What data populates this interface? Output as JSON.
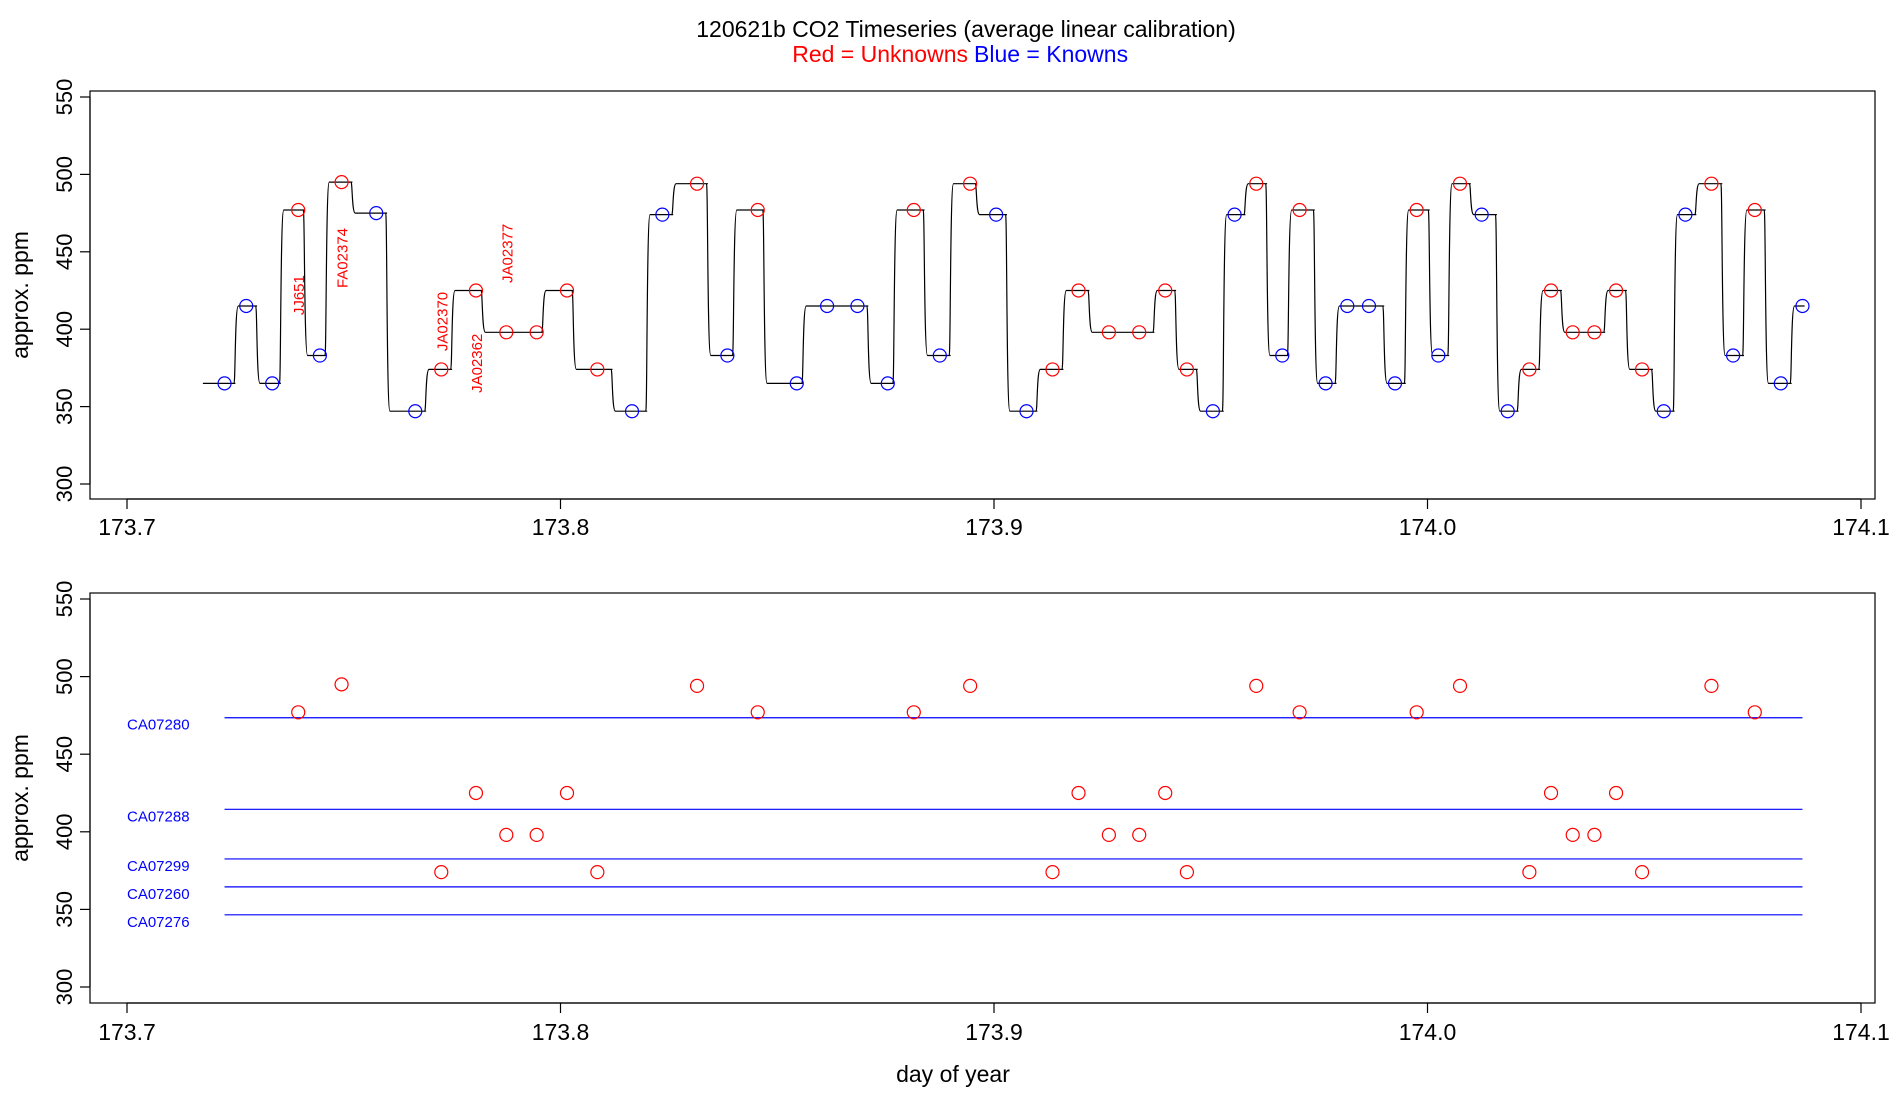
{
  "title": "120621b   CO2 Timeseries (average linear calibration)",
  "legend": {
    "red_label": "Red = Unknowns",
    "blue_label": "Blue = Knowns",
    "red_color": "#ff0000",
    "blue_color": "#0000ff"
  },
  "chart_data": [
    {
      "type": "line",
      "panel": "timeseries",
      "xlabel": "",
      "ylabel": "approx. ppm",
      "xlim": [
        173.7,
        174.1
      ],
      "ylim": [
        300,
        550
      ],
      "x_ticks": [
        173.7,
        173.8,
        173.9,
        174.0,
        174.1
      ],
      "x_tick_labels": [
        "173.7",
        "173.8",
        "173.9",
        "174.0",
        "174.1"
      ],
      "y_ticks": [
        300,
        350,
        400,
        450,
        500,
        550
      ],
      "y_tick_labels": [
        "300",
        "350",
        "400",
        "450",
        "500",
        "550"
      ],
      "trace_color": "#000000",
      "levels": [
        {
          "start": 173.7175,
          "end": 173.725,
          "y": 365
        },
        {
          "start": 173.725,
          "end": 173.73,
          "y": 415
        },
        {
          "start": 173.73,
          "end": 173.7355,
          "y": 365
        },
        {
          "start": 173.7355,
          "end": 173.741,
          "y": 477
        },
        {
          "start": 173.741,
          "end": 173.746,
          "y": 383
        },
        {
          "start": 173.746,
          "end": 173.752,
          "y": 495
        },
        {
          "start": 173.752,
          "end": 173.76,
          "y": 475
        },
        {
          "start": 173.76,
          "end": 173.769,
          "y": 347
        },
        {
          "start": 173.769,
          "end": 173.775,
          "y": 374
        },
        {
          "start": 173.775,
          "end": 173.782,
          "y": 425
        },
        {
          "start": 173.782,
          "end": 173.796,
          "y": 398
        },
        {
          "start": 173.796,
          "end": 173.803,
          "y": 425
        },
        {
          "start": 173.803,
          "end": 173.812,
          "y": 374
        },
        {
          "start": 173.812,
          "end": 173.82,
          "y": 347
        },
        {
          "start": 173.82,
          "end": 173.826,
          "y": 474
        },
        {
          "start": 173.826,
          "end": 173.834,
          "y": 494
        },
        {
          "start": 173.834,
          "end": 173.84,
          "y": 383
        },
        {
          "start": 173.84,
          "end": 173.847,
          "y": 477
        },
        {
          "start": 173.847,
          "end": 173.856,
          "y": 365
        },
        {
          "start": 173.856,
          "end": 173.871,
          "y": 415
        },
        {
          "start": 173.871,
          "end": 173.877,
          "y": 365
        },
        {
          "start": 173.877,
          "end": 173.884,
          "y": 477
        },
        {
          "start": 173.884,
          "end": 173.89,
          "y": 383
        },
        {
          "start": 173.89,
          "end": 173.896,
          "y": 494
        },
        {
          "start": 173.896,
          "end": 173.903,
          "y": 474
        },
        {
          "start": 173.903,
          "end": 173.91,
          "y": 347
        },
        {
          "start": 173.91,
          "end": 173.916,
          "y": 374
        },
        {
          "start": 173.916,
          "end": 173.922,
          "y": 425
        },
        {
          "start": 173.922,
          "end": 173.937,
          "y": 398
        },
        {
          "start": 173.937,
          "end": 173.942,
          "y": 425
        },
        {
          "start": 173.942,
          "end": 173.947,
          "y": 374
        },
        {
          "start": 173.947,
          "end": 173.953,
          "y": 347
        },
        {
          "start": 173.953,
          "end": 173.958,
          "y": 474
        },
        {
          "start": 173.958,
          "end": 173.963,
          "y": 494
        },
        {
          "start": 173.963,
          "end": 173.968,
          "y": 383
        },
        {
          "start": 173.968,
          "end": 173.974,
          "y": 477
        },
        {
          "start": 173.974,
          "end": 173.979,
          "y": 365
        },
        {
          "start": 173.979,
          "end": 173.99,
          "y": 415
        },
        {
          "start": 173.99,
          "end": 173.995,
          "y": 365
        },
        {
          "start": 173.995,
          "end": 174.0005,
          "y": 477
        },
        {
          "start": 174.0005,
          "end": 174.005,
          "y": 383
        },
        {
          "start": 174.005,
          "end": 174.01,
          "y": 494
        },
        {
          "start": 174.01,
          "end": 174.016,
          "y": 474
        },
        {
          "start": 174.016,
          "end": 174.021,
          "y": 347
        },
        {
          "start": 174.021,
          "end": 174.026,
          "y": 374
        },
        {
          "start": 174.026,
          "end": 174.031,
          "y": 425
        },
        {
          "start": 174.031,
          "end": 174.041,
          "y": 398
        },
        {
          "start": 174.041,
          "end": 174.046,
          "y": 425
        },
        {
          "start": 174.046,
          "end": 174.052,
          "y": 374
        },
        {
          "start": 174.052,
          "end": 174.057,
          "y": 347
        },
        {
          "start": 174.057,
          "end": 174.062,
          "y": 474
        },
        {
          "start": 174.062,
          "end": 174.068,
          "y": 494
        },
        {
          "start": 174.068,
          "end": 174.073,
          "y": 383
        },
        {
          "start": 174.073,
          "end": 174.078,
          "y": 477
        },
        {
          "start": 174.078,
          "end": 174.084,
          "y": 365
        },
        {
          "start": 174.084,
          "end": 174.087,
          "y": 415
        }
      ],
      "series": [
        {
          "name": "Unknowns",
          "color": "#ff0000",
          "points": [
            {
              "x": 173.7395,
              "y": 477
            },
            {
              "x": 173.7495,
              "y": 495
            },
            {
              "x": 173.7725,
              "y": 374
            },
            {
              "x": 173.7805,
              "y": 425
            },
            {
              "x": 173.7875,
              "y": 398
            },
            {
              "x": 173.7945,
              "y": 398
            },
            {
              "x": 173.8015,
              "y": 425
            },
            {
              "x": 173.8085,
              "y": 374
            },
            {
              "x": 173.8315,
              "y": 494
            },
            {
              "x": 173.8455,
              "y": 477
            },
            {
              "x": 173.8815,
              "y": 477
            },
            {
              "x": 173.8945,
              "y": 494
            },
            {
              "x": 173.9135,
              "y": 374
            },
            {
              "x": 173.9195,
              "y": 425
            },
            {
              "x": 173.9265,
              "y": 398
            },
            {
              "x": 173.9335,
              "y": 398
            },
            {
              "x": 173.9395,
              "y": 425
            },
            {
              "x": 173.9445,
              "y": 374
            },
            {
              "x": 173.9605,
              "y": 494
            },
            {
              "x": 173.9705,
              "y": 477
            },
            {
              "x": 173.9975,
              "y": 477
            },
            {
              "x": 174.0075,
              "y": 494
            },
            {
              "x": 174.0235,
              "y": 374
            },
            {
              "x": 174.0285,
              "y": 425
            },
            {
              "x": 174.0335,
              "y": 398
            },
            {
              "x": 174.0385,
              "y": 398
            },
            {
              "x": 174.0435,
              "y": 425
            },
            {
              "x": 174.0495,
              "y": 374
            },
            {
              "x": 174.0655,
              "y": 494
            },
            {
              "x": 174.0755,
              "y": 477
            }
          ]
        },
        {
          "name": "Knowns",
          "color": "#0000ff",
          "points": [
            {
              "x": 173.7225,
              "y": 365
            },
            {
              "x": 173.7275,
              "y": 415
            },
            {
              "x": 173.7335,
              "y": 365
            },
            {
              "x": 173.7445,
              "y": 383
            },
            {
              "x": 173.7575,
              "y": 475
            },
            {
              "x": 173.7665,
              "y": 347
            },
            {
              "x": 173.8165,
              "y": 347
            },
            {
              "x": 173.8235,
              "y": 474
            },
            {
              "x": 173.8385,
              "y": 383
            },
            {
              "x": 173.8545,
              "y": 365
            },
            {
              "x": 173.8615,
              "y": 415
            },
            {
              "x": 173.8685,
              "y": 415
            },
            {
              "x": 173.8755,
              "y": 365
            },
            {
              "x": 173.8875,
              "y": 383
            },
            {
              "x": 173.9005,
              "y": 474
            },
            {
              "x": 173.9075,
              "y": 347
            },
            {
              "x": 173.9505,
              "y": 347
            },
            {
              "x": 173.9555,
              "y": 474
            },
            {
              "x": 173.9665,
              "y": 383
            },
            {
              "x": 173.9765,
              "y": 365
            },
            {
              "x": 173.9815,
              "y": 415
            },
            {
              "x": 173.9865,
              "y": 415
            },
            {
              "x": 173.9925,
              "y": 365
            },
            {
              "x": 174.0025,
              "y": 383
            },
            {
              "x": 174.0125,
              "y": 474
            },
            {
              "x": 174.0185,
              "y": 347
            },
            {
              "x": 174.0545,
              "y": 347
            },
            {
              "x": 174.0595,
              "y": 474
            },
            {
              "x": 174.0705,
              "y": 383
            },
            {
              "x": 174.0815,
              "y": 365
            },
            {
              "x": 174.0865,
              "y": 415
            }
          ]
        }
      ],
      "annotations": [
        {
          "text": "JJ651",
          "x": 173.7395,
          "y": 422
        },
        {
          "text": "FA02374",
          "x": 173.7495,
          "y": 446
        },
        {
          "text": "JA02370",
          "x": 173.7725,
          "y": 405
        },
        {
          "text": "JA02362",
          "x": 173.7805,
          "y": 378
        },
        {
          "text": "JA02377",
          "x": 173.7875,
          "y": 449
        }
      ]
    },
    {
      "type": "scatter",
      "panel": "calibrated",
      "xlabel": "day of year",
      "ylabel": "approx. ppm",
      "xlim": [
        173.7,
        174.1
      ],
      "ylim": [
        300,
        550
      ],
      "x_ticks": [
        173.7,
        173.8,
        173.9,
        174.0,
        174.1
      ],
      "x_tick_labels": [
        "173.7",
        "173.8",
        "173.9",
        "174.0",
        "174.1"
      ],
      "y_ticks": [
        300,
        350,
        400,
        450,
        500,
        550
      ],
      "y_tick_labels": [
        "300",
        "350",
        "400",
        "450",
        "500",
        "550"
      ],
      "reference_lines": [
        {
          "name": "CA07280",
          "y": 473.5,
          "x_start": 173.7225,
          "x_end": 174.0865,
          "color": "#0000ff"
        },
        {
          "name": "CA07288",
          "y": 414.5,
          "x_start": 173.7225,
          "x_end": 174.0865,
          "color": "#0000ff"
        },
        {
          "name": "CA07299",
          "y": 382.5,
          "x_start": 173.7225,
          "x_end": 174.0865,
          "color": "#0000ff"
        },
        {
          "name": "CA07260",
          "y": 364.5,
          "x_start": 173.7225,
          "x_end": 174.0865,
          "color": "#0000ff"
        },
        {
          "name": "CA07276",
          "y": 346.5,
          "x_start": 173.7225,
          "x_end": 174.0865,
          "color": "#0000ff"
        }
      ],
      "series": [
        {
          "name": "Unknowns",
          "color": "#ff0000",
          "points": [
            {
              "x": 173.7395,
              "y": 477
            },
            {
              "x": 173.7495,
              "y": 495
            },
            {
              "x": 173.7725,
              "y": 374
            },
            {
              "x": 173.7805,
              "y": 425
            },
            {
              "x": 173.7875,
              "y": 398
            },
            {
              "x": 173.7945,
              "y": 398
            },
            {
              "x": 173.8015,
              "y": 425
            },
            {
              "x": 173.8085,
              "y": 374
            },
            {
              "x": 173.8315,
              "y": 494
            },
            {
              "x": 173.8455,
              "y": 477
            },
            {
              "x": 173.8815,
              "y": 477
            },
            {
              "x": 173.8945,
              "y": 494
            },
            {
              "x": 173.9135,
              "y": 374
            },
            {
              "x": 173.9195,
              "y": 425
            },
            {
              "x": 173.9265,
              "y": 398
            },
            {
              "x": 173.9335,
              "y": 398
            },
            {
              "x": 173.9395,
              "y": 425
            },
            {
              "x": 173.9445,
              "y": 374
            },
            {
              "x": 173.9605,
              "y": 494
            },
            {
              "x": 173.9705,
              "y": 477
            },
            {
              "x": 173.9975,
              "y": 477
            },
            {
              "x": 174.0075,
              "y": 494
            },
            {
              "x": 174.0235,
              "y": 374
            },
            {
              "x": 174.0285,
              "y": 425
            },
            {
              "x": 174.0335,
              "y": 398
            },
            {
              "x": 174.0385,
              "y": 398
            },
            {
              "x": 174.0435,
              "y": 425
            },
            {
              "x": 174.0495,
              "y": 374
            },
            {
              "x": 174.0655,
              "y": 494
            },
            {
              "x": 174.0755,
              "y": 477
            }
          ]
        }
      ]
    }
  ]
}
